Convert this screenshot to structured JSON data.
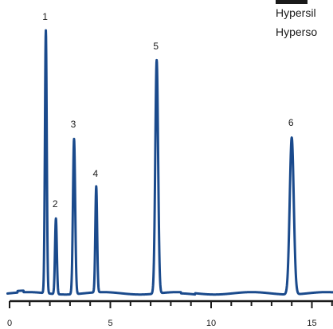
{
  "chart_data": {
    "type": "line",
    "title": "",
    "xlabel": "",
    "ylabel": "",
    "xlim": [
      0,
      16.2
    ],
    "x_ticks": [
      0,
      5,
      10,
      15
    ],
    "x_tick_labels": [
      "0",
      "5",
      "10",
      "15"
    ],
    "legend_lines": [
      "Hypersil",
      "Hyperso"
    ],
    "line_color": "#1a4a8c",
    "peaks": [
      {
        "label": "1",
        "x": 1.8,
        "height": 330
      },
      {
        "label": "2",
        "x": 2.3,
        "height": 95
      },
      {
        "label": "3",
        "x": 3.2,
        "height": 195
      },
      {
        "label": "4",
        "x": 4.3,
        "height": 133
      },
      {
        "label": "5",
        "x": 7.3,
        "height": 293
      },
      {
        "label": "6",
        "x": 14.0,
        "height": 197
      }
    ]
  }
}
